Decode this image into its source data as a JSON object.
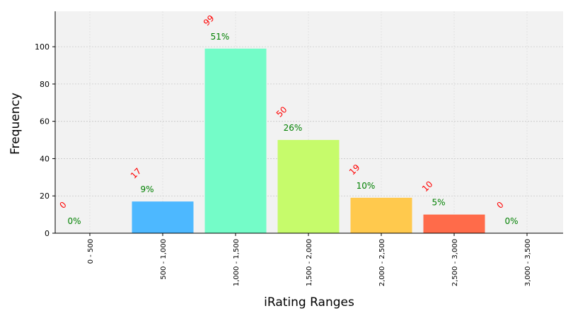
{
  "chart_data": {
    "type": "bar",
    "categories": [
      "0 - 500",
      "500 - 1,000",
      "1,000 - 1,500",
      "1,500 - 2,000",
      "2,000 - 2,500",
      "2,500 - 3,000",
      "3,000 - 3,500"
    ],
    "values": [
      0,
      17,
      99,
      50,
      19,
      10,
      0
    ],
    "count_labels": [
      "0",
      "17",
      "99",
      "50",
      "19",
      "10",
      "0"
    ],
    "percent_labels": [
      "0%",
      "9%",
      "51%",
      "26%",
      "10%",
      "5%",
      "0%"
    ],
    "bar_colors": [
      "#4a90e2",
      "#4db8ff",
      "#74fcc8",
      "#c6fb6b",
      "#ffc94d",
      "#ff6b4a",
      "#ff6b4a"
    ],
    "xlabel": "iRating Ranges",
    "ylabel": "Frequency",
    "ylim": [
      0,
      119
    ],
    "yticks": [
      0,
      20,
      40,
      60,
      80,
      100
    ],
    "grid": true,
    "colors": {
      "plot_background": "#f2f2f2",
      "count_label": "#ff0000",
      "percent_label": "#008000"
    }
  }
}
